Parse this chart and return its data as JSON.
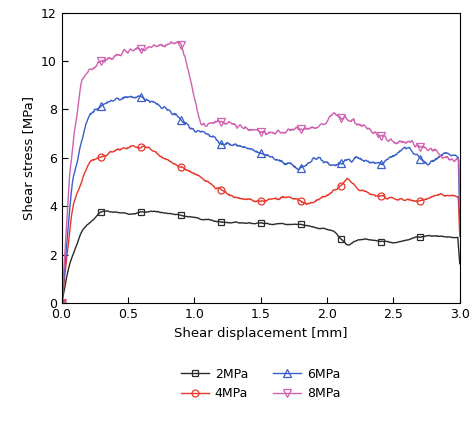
{
  "title": "",
  "xlabel": "Shear displacement [mm]",
  "ylabel": "Shear stress [MPa]",
  "xlim": [
    0.0,
    3.0
  ],
  "ylim": [
    0,
    12
  ],
  "xticks": [
    0.0,
    0.5,
    1.0,
    1.5,
    2.0,
    2.5,
    3.0
  ],
  "yticks": [
    0,
    2,
    4,
    6,
    8,
    10,
    12
  ],
  "series": {
    "2MPa": {
      "color": "#2b2b2b",
      "marker": "s",
      "markersize": 5,
      "label": "2MPa"
    },
    "4MPa": {
      "color": "#e8372a",
      "marker": "o",
      "markersize": 5,
      "label": "4MPa"
    },
    "6MPa": {
      "color": "#3a5fc8",
      "marker": "^",
      "markersize": 6,
      "label": "6MPa"
    },
    "8MPa": {
      "color": "#d060b0",
      "marker": "v",
      "markersize": 6,
      "label": "8MPa"
    }
  },
  "background_color": "#ffffff",
  "linewidth": 1.0
}
